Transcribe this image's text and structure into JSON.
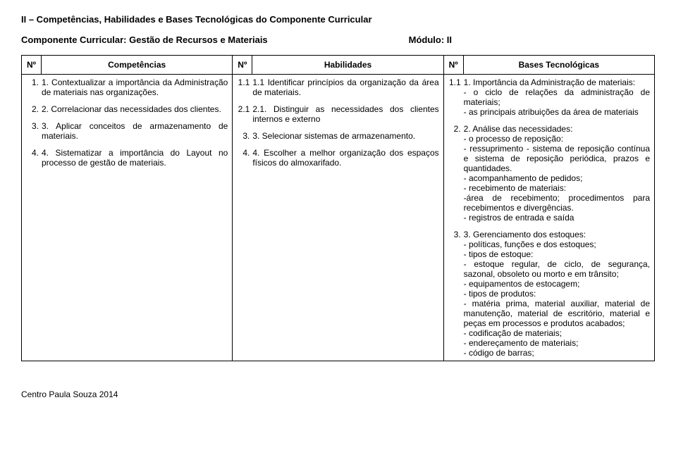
{
  "section_title": "II – Competências, Habilidades e Bases Tecnológicas do Componente Curricular",
  "subtitle_left": "Componente Curricular: Gestão de Recursos e Materiais",
  "subtitle_module": "Módulo: II",
  "headers": {
    "n1": "Nº",
    "c1": "Competências",
    "n2": "Nº",
    "c2": "Habilidades",
    "n3": "Nº",
    "c3": "Bases Tecnológicas"
  },
  "col1": [
    {
      "n": "1.",
      "t": "1. Contextualizar a importância da Administração de materiais nas organizações."
    },
    {
      "n": "2.",
      "t": "2. Correlacionar das necessidades dos clientes."
    },
    {
      "n": "3.",
      "t": "3. Aplicar conceitos de armazenamento de materiais."
    },
    {
      "n": "4.",
      "t": "4. Sistematizar a importância do Layout no processo de gestão de materiais."
    }
  ],
  "col2": [
    {
      "n": "1.1",
      "t": "1.1 Identificar princípios da organização da área de materiais."
    },
    {
      "n": "2.1",
      "t": "2.1. Distinguir as necessidades dos clientes internos e externo"
    },
    {
      "n": "3.",
      "t": "3. Selecionar sistemas de armazenamento."
    },
    {
      "n": "4.",
      "t": "4. Escolher a melhor organização dos espaços físicos do almoxarifado."
    }
  ],
  "col3": [
    {
      "n": "1.1",
      "t": "1. Importância da Administração de materiais:\n- o ciclo de relações da administração de materiais;\n- as principais atribuições da área de materiais"
    },
    {
      "n": "2.",
      "t": "2. Análise das necessidades:\n- o processo de reposição:\n- ressuprimento - sistema de reposição contínua e sistema de reposição periódica, prazos e quantidades.\n- acompanhamento de pedidos;\n- recebimento de materiais:\n-área de recebimento; procedimentos para recebimentos e divergências.\n- registros de entrada e saída"
    },
    {
      "n": "3.",
      "t": "3. Gerenciamento dos estoques:\n- políticas, funções e dos estoques;\n- tipos de estoque:\n- estoque regular, de ciclo, de segurança, sazonal, obsoleto ou morto e em trânsito;\n- equipamentos de estocagem;\n- tipos de produtos:\n- matéria prima, material auxiliar, material de manutenção, material de escritório, material e peças em processos e produtos acabados;\n- codificação de materiais;\n- endereçamento de materiais;\n- código de barras;"
    }
  ],
  "footer": "Centro Paula Souza 2014"
}
